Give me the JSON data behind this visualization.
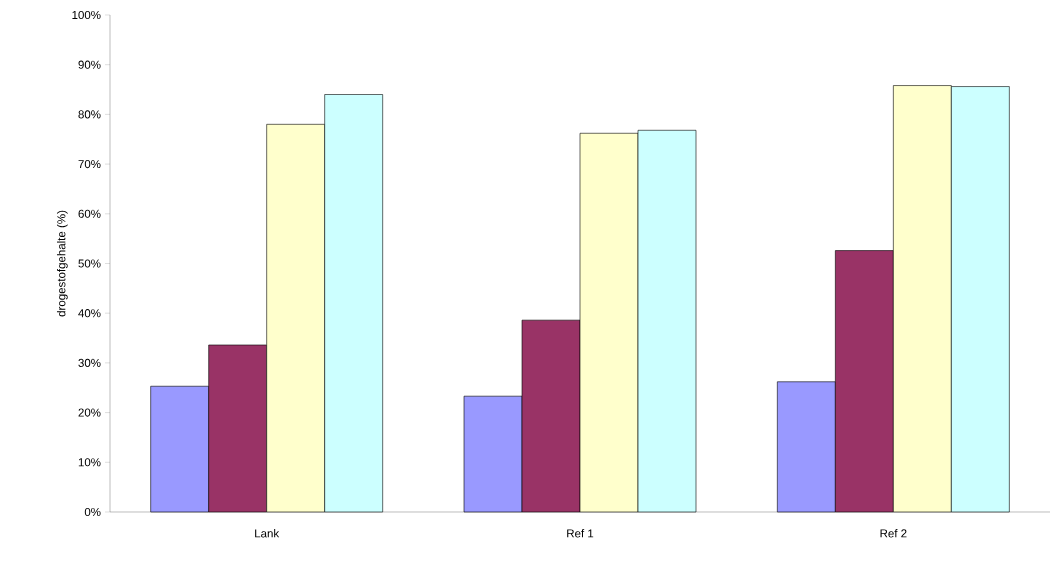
{
  "chart_data": {
    "type": "bar",
    "ylabel": "drogestofgehalte (%)",
    "categories": [
      "Lank",
      "Ref 1",
      "Ref 2"
    ],
    "series": [
      {
        "color": "#9999ff",
        "values": [
          25.3,
          23.3,
          26.2
        ]
      },
      {
        "color": "#993366",
        "values": [
          33.6,
          38.6,
          52.6
        ]
      },
      {
        "color": "#ffffcc",
        "values": [
          78.0,
          76.2,
          85.8
        ]
      },
      {
        "color": "#ccffff",
        "values": [
          84.0,
          76.8,
          85.6
        ]
      }
    ],
    "ylim": [
      0,
      100
    ],
    "yticks": [
      {
        "value": 0,
        "label": "0%"
      },
      {
        "value": 10,
        "label": "10%"
      },
      {
        "value": 20,
        "label": "20%"
      },
      {
        "value": 30,
        "label": "30%"
      },
      {
        "value": 40,
        "label": "40%"
      },
      {
        "value": 50,
        "label": "50%"
      },
      {
        "value": 60,
        "label": "60%"
      },
      {
        "value": 70,
        "label": "70%"
      },
      {
        "value": 80,
        "label": "80%"
      },
      {
        "value": 90,
        "label": "90%"
      },
      {
        "value": 100,
        "label": "100%"
      }
    ]
  }
}
